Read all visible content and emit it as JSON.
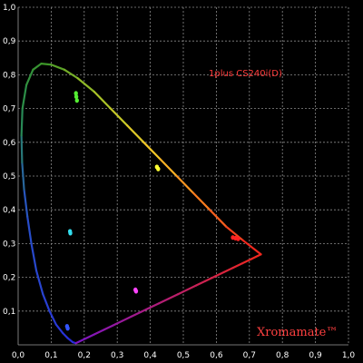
{
  "chart_data": {
    "type": "scatter",
    "title": "1plus CS240i(D)",
    "watermark": "Xromamate™",
    "xlim": [
      0,
      1.0
    ],
    "ylim": [
      0,
      1.0
    ],
    "x_ticks": [
      "0,0",
      "0,1",
      "0,2",
      "0,3",
      "0,4",
      "0,5",
      "0,6",
      "0,7",
      "0,8",
      "0,9",
      "1,0"
    ],
    "y_ticks": [
      "0,1",
      "0,2",
      "0,3",
      "0,4",
      "0,5",
      "0,6",
      "0,7",
      "0,8",
      "0,9",
      "1,0"
    ],
    "grid": true,
    "background": "#000000",
    "title_color": "#ff3a3a",
    "watermark_color": "#ff4040",
    "locus": {
      "name": "spectral-locus",
      "points": [
        [
          0.175,
          0.005
        ],
        [
          0.165,
          0.008
        ],
        [
          0.15,
          0.02
        ],
        [
          0.135,
          0.035
        ],
        [
          0.115,
          0.06
        ],
        [
          0.095,
          0.1
        ],
        [
          0.075,
          0.15
        ],
        [
          0.055,
          0.22
        ],
        [
          0.04,
          0.3
        ],
        [
          0.028,
          0.38
        ],
        [
          0.018,
          0.46
        ],
        [
          0.012,
          0.54
        ],
        [
          0.01,
          0.62
        ],
        [
          0.013,
          0.7
        ],
        [
          0.025,
          0.77
        ],
        [
          0.045,
          0.815
        ],
        [
          0.07,
          0.833
        ],
        [
          0.1,
          0.83
        ],
        [
          0.14,
          0.815
        ],
        [
          0.18,
          0.79
        ],
        [
          0.23,
          0.75
        ],
        [
          0.28,
          0.7
        ],
        [
          0.33,
          0.65
        ],
        [
          0.38,
          0.6
        ],
        [
          0.43,
          0.55
        ],
        [
          0.48,
          0.5
        ],
        [
          0.53,
          0.45
        ],
        [
          0.58,
          0.4
        ],
        [
          0.63,
          0.35
        ],
        [
          0.68,
          0.31
        ],
        [
          0.735,
          0.268
        ]
      ],
      "closing_line_to": [
        0.175,
        0.005
      ]
    },
    "series": [
      {
        "name": "green",
        "color": "#55ee33",
        "points": [
          [
            0.175,
            0.745
          ],
          [
            0.176,
            0.735
          ],
          [
            0.178,
            0.724
          ]
        ]
      },
      {
        "name": "yellow",
        "color": "#ffff33",
        "points": [
          [
            0.42,
            0.527
          ],
          [
            0.424,
            0.521
          ]
        ]
      },
      {
        "name": "red",
        "color": "#ff2222",
        "points": [
          [
            0.65,
            0.318
          ],
          [
            0.658,
            0.316
          ],
          [
            0.666,
            0.314
          ]
        ]
      },
      {
        "name": "cyan",
        "color": "#33ddee",
        "points": [
          [
            0.157,
            0.336
          ],
          [
            0.158,
            0.331
          ]
        ]
      },
      {
        "name": "magenta",
        "color": "#ff44ff",
        "points": [
          [
            0.355,
            0.163
          ],
          [
            0.357,
            0.159
          ]
        ]
      },
      {
        "name": "blue",
        "color": "#3355ff",
        "points": [
          [
            0.148,
            0.055
          ],
          [
            0.15,
            0.049
          ]
        ]
      }
    ]
  }
}
